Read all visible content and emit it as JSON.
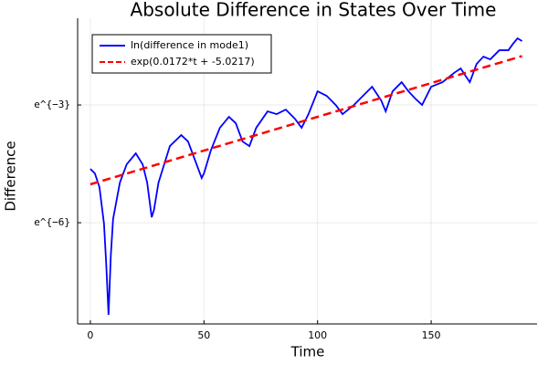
{
  "chart_data": {
    "type": "line",
    "title": "Absolute Difference in States Over Time",
    "x_label": "Time",
    "y_label": "Difference",
    "yscale": "log",
    "grid": true,
    "legend": "top-left",
    "xlim": [
      -5.6,
      196.6
    ],
    "ylim": [
      0.000188,
      0.454
    ],
    "xticks": [
      0,
      50,
      100,
      150
    ],
    "yticks": [
      {
        "value": 0.002479,
        "label": "e^{−6}"
      },
      {
        "value": 0.04979,
        "label": "e^{−3}"
      }
    ],
    "series": [
      {
        "name": "ln(difference in mode1)",
        "color": "#0000ff",
        "dash": false,
        "x": [
          0,
          2,
          4,
          6,
          7,
          8,
          9,
          10,
          13,
          16,
          20,
          23,
          25,
          27,
          28,
          30,
          35,
          40,
          43,
          46,
          49,
          50,
          53,
          57,
          61,
          64,
          67,
          70,
          73,
          78,
          82,
          86,
          90,
          93,
          96,
          100,
          104,
          108,
          111,
          116,
          120,
          124,
          128,
          130,
          133,
          137,
          140,
          143,
          146,
          150,
          155,
          160,
          163,
          167,
          170,
          173,
          176,
          180,
          184,
          186,
          188,
          190
        ],
        "values": [
          0.00977,
          0.0087,
          0.00614,
          0.00242,
          0.00085,
          0.000237,
          0.00107,
          0.00272,
          0.0069,
          0.01098,
          0.01451,
          0.01098,
          0.0069,
          0.00285,
          0.00344,
          0.0069,
          0.01748,
          0.02312,
          0.01964,
          0.01234,
          0.00775,
          0.0087,
          0.01556,
          0.02783,
          0.03681,
          0.03128,
          0.01964,
          0.01748,
          0.02783,
          0.0423,
          0.03944,
          0.04433,
          0.03512,
          0.02783,
          0.03944,
          0.07057,
          0.06285,
          0.04979,
          0.03944,
          0.04979,
          0.06285,
          0.07924,
          0.05593,
          0.0423,
          0.07057,
          0.08903,
          0.07057,
          0.05862,
          0.04979,
          0.07924,
          0.08903,
          0.1124,
          0.1262,
          0.08903,
          0.1418,
          0.1709,
          0.1593,
          0.2009,
          0.2009,
          0.2365,
          0.272,
          0.2536
        ]
      },
      {
        "name": "exp(0.0172*t + -5.0217)",
        "color": "#ff0000",
        "dash": true,
        "x": [
          0,
          190
        ],
        "values": [
          0.006594,
          0.1731
        ]
      }
    ]
  }
}
